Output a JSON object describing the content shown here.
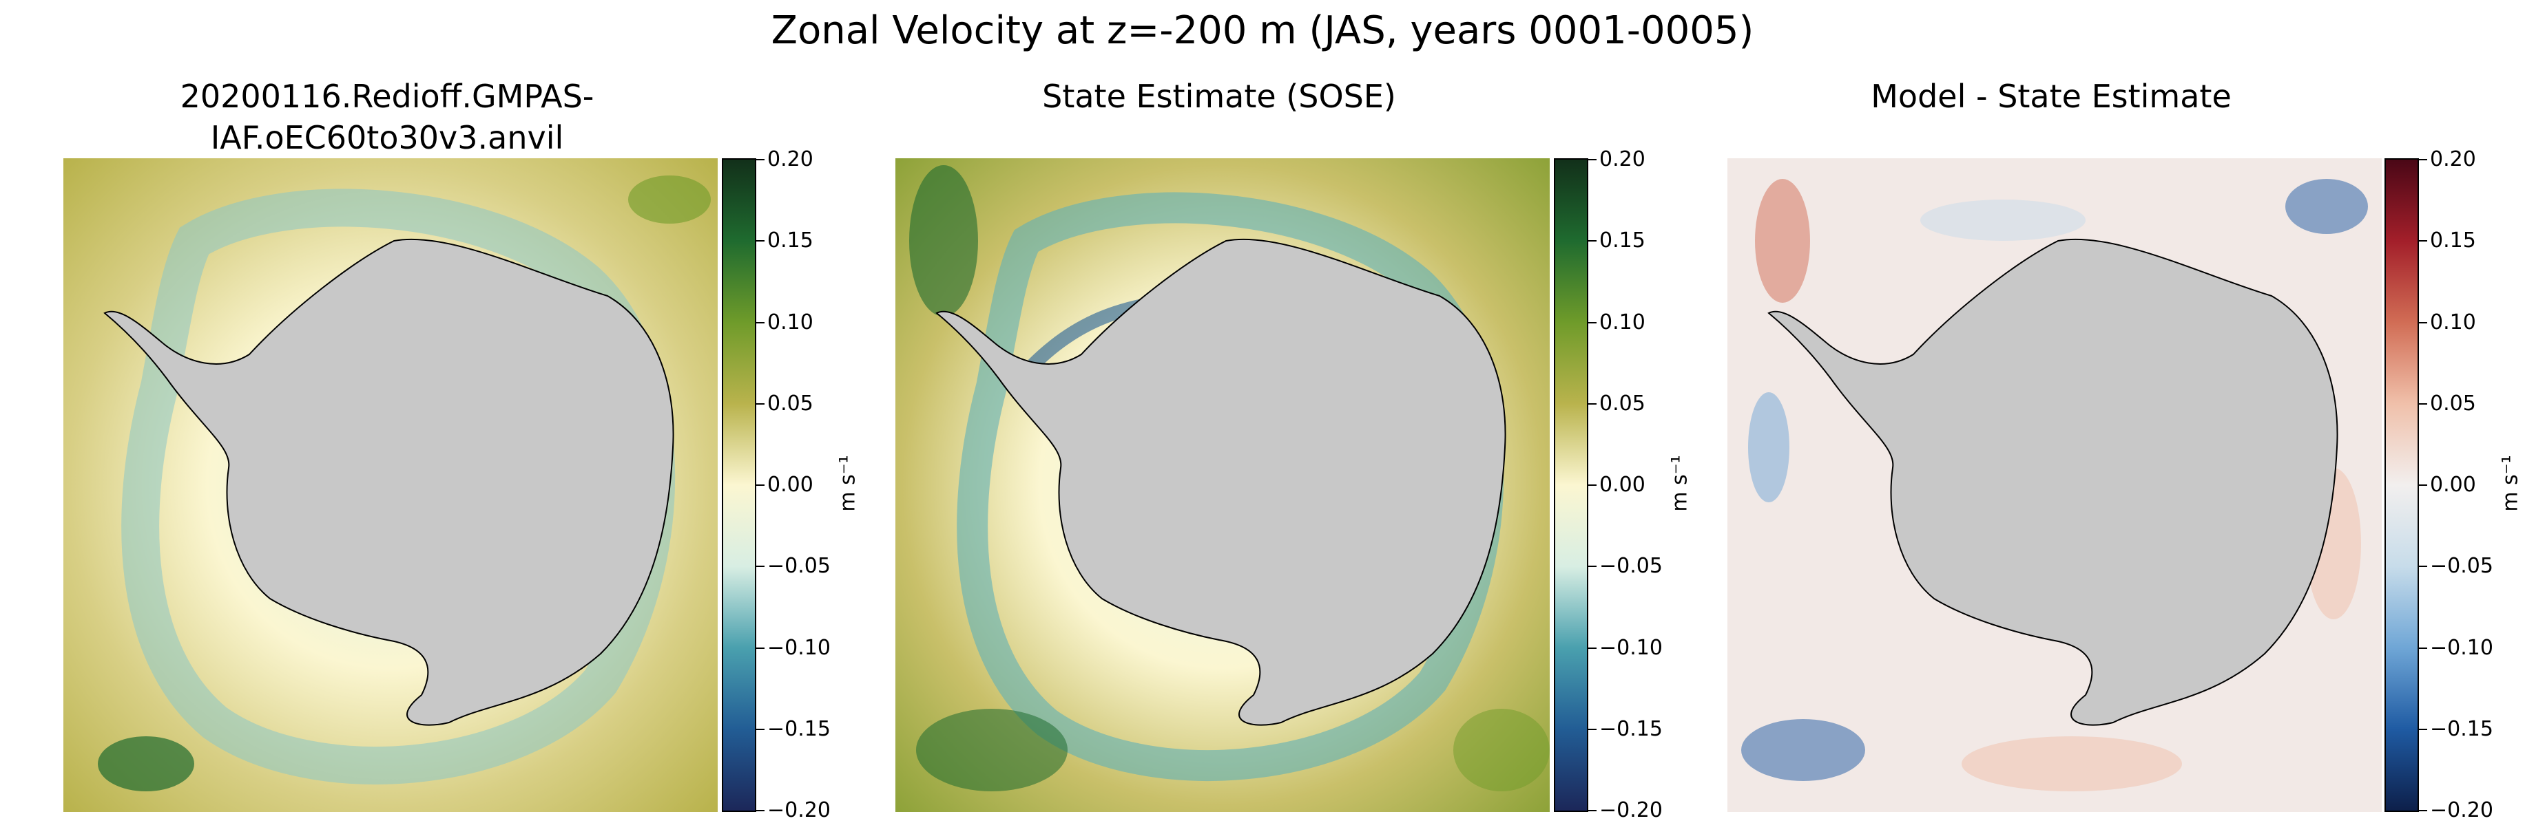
{
  "figure": {
    "suptitle": "Zonal Velocity at z=-200 m (JAS, years 0001-0005)"
  },
  "panels": [
    {
      "title": "20200116.Redioff.GMPAS-IAF.oEC60to30v3.anvil",
      "colormap": "yellow-green-blue diverging",
      "colorbar": {
        "ticks": [
          "0.20",
          "0.15",
          "0.10",
          "0.05",
          "0.00",
          "−0.05",
          "−0.10",
          "−0.15",
          "−0.20"
        ],
        "unit": "m s⁻¹",
        "colors": [
          "#1c2759",
          "#225d95",
          "#4aa0ae",
          "#d8eee3",
          "#fbf6d1",
          "#b9b34d",
          "#6f9b2a",
          "#1f6b2f",
          "#12301a"
        ]
      }
    },
    {
      "title": "State Estimate (SOSE)",
      "colormap": "yellow-green-blue diverging",
      "colorbar": {
        "ticks": [
          "0.20",
          "0.15",
          "0.10",
          "0.05",
          "0.00",
          "−0.05",
          "−0.10",
          "−0.15",
          "−0.20"
        ],
        "unit": "m s⁻¹",
        "colors": [
          "#1c2759",
          "#225d95",
          "#4aa0ae",
          "#d8eee3",
          "#fbf6d1",
          "#b9b34d",
          "#6f9b2a",
          "#1f6b2f",
          "#12301a"
        ]
      }
    },
    {
      "title": "Model - State Estimate",
      "colormap": "blue-white-red diverging",
      "colorbar": {
        "ticks": [
          "0.20",
          "0.15",
          "0.10",
          "0.05",
          "0.00",
          "−0.05",
          "−0.10",
          "−0.15",
          "−0.20"
        ],
        "unit": "m s⁻¹",
        "colors": [
          "#0d1f4a",
          "#1f5ba3",
          "#6fa6d6",
          "#c7dcea",
          "#f2efee",
          "#f0c0aa",
          "#d16d55",
          "#a31f2a",
          "#4a0716"
        ]
      }
    }
  ],
  "chart_data": [
    {
      "type": "heatmap",
      "title": "20200116.Redioff.GMPAS-IAF.oEC60to30v3.anvil",
      "variable": "Zonal Velocity at z=-200 m",
      "season": "JAS",
      "years": "0001-0005",
      "colorbar_range": [
        -0.2,
        0.2
      ],
      "colorbar_ticks": [
        0.2,
        0.15,
        0.1,
        0.05,
        0.0,
        -0.05,
        -0.1,
        -0.15,
        -0.2
      ],
      "unit": "m s⁻¹",
      "land_mask": "Antarctica (gray)"
    },
    {
      "type": "heatmap",
      "title": "State Estimate (SOSE)",
      "variable": "Zonal Velocity at z=-200 m",
      "season": "JAS",
      "years": "0001-0005",
      "colorbar_range": [
        -0.2,
        0.2
      ],
      "colorbar_ticks": [
        0.2,
        0.15,
        0.1,
        0.05,
        0.0,
        -0.05,
        -0.1,
        -0.15,
        -0.2
      ],
      "unit": "m s⁻¹",
      "land_mask": "Antarctica (gray)"
    },
    {
      "type": "heatmap",
      "title": "Model - State Estimate",
      "variable": "Zonal Velocity difference at z=-200 m",
      "season": "JAS",
      "years": "0001-0005",
      "colorbar_range": [
        -0.2,
        0.2
      ],
      "colorbar_ticks": [
        0.2,
        0.15,
        0.1,
        0.05,
        0.0,
        -0.05,
        -0.1,
        -0.15,
        -0.2
      ],
      "unit": "m s⁻¹",
      "land_mask": "Antarctica (gray)"
    }
  ]
}
